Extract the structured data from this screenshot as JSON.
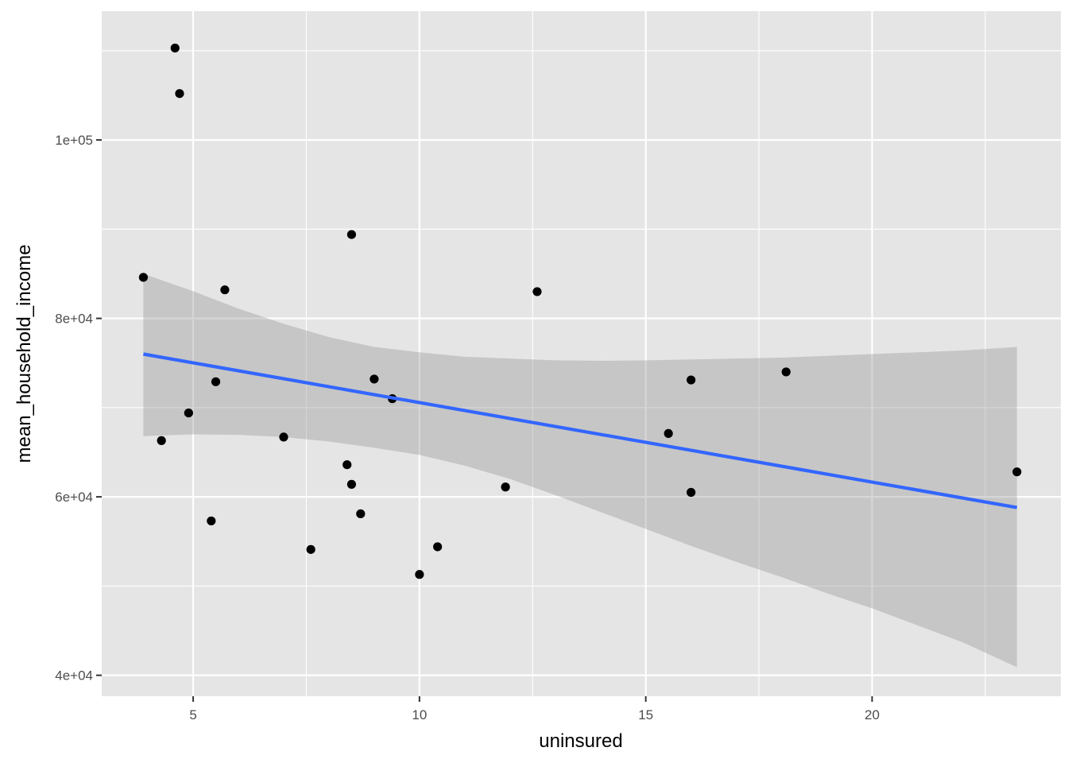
{
  "chart_data": {
    "type": "scatter",
    "title": "",
    "xlabel": "uninsured",
    "ylabel": "mean_household_income",
    "xlim": [
      2.98,
      24.17
    ],
    "ylim": [
      37650,
      114440
    ],
    "x_ticks": [
      5,
      10,
      15,
      20
    ],
    "x_tick_labels": [
      "5",
      "10",
      "15",
      "20"
    ],
    "x_minor_ticks": [
      7.5,
      12.5,
      17.5,
      22.5
    ],
    "y_ticks": [
      40000,
      60000,
      80000,
      100000
    ],
    "y_tick_labels": [
      "4e+04",
      "6e+04",
      "8e+04",
      "1e+05"
    ],
    "y_minor_ticks": [
      50000,
      70000,
      90000,
      110000
    ],
    "grid": true,
    "colors": {
      "panel": "#e5e5e5",
      "grid": "#ffffff",
      "points": "#000000",
      "fit_line": "#3366ff",
      "ribbon": "#999999"
    },
    "points": [
      {
        "x": 4.6,
        "y": 110300
      },
      {
        "x": 4.7,
        "y": 105200
      },
      {
        "x": 3.9,
        "y": 84600
      },
      {
        "x": 4.3,
        "y": 66300
      },
      {
        "x": 4.9,
        "y": 69400
      },
      {
        "x": 5.4,
        "y": 57300
      },
      {
        "x": 5.5,
        "y": 72900
      },
      {
        "x": 5.7,
        "y": 83200
      },
      {
        "x": 7.0,
        "y": 66700
      },
      {
        "x": 7.6,
        "y": 54100
      },
      {
        "x": 8.4,
        "y": 63600
      },
      {
        "x": 8.5,
        "y": 89400
      },
      {
        "x": 8.5,
        "y": 61400
      },
      {
        "x": 8.7,
        "y": 58100
      },
      {
        "x": 9.0,
        "y": 73200
      },
      {
        "x": 9.4,
        "y": 71000
      },
      {
        "x": 10.0,
        "y": 51300
      },
      {
        "x": 10.4,
        "y": 54400
      },
      {
        "x": 11.9,
        "y": 61100
      },
      {
        "x": 12.6,
        "y": 83000
      },
      {
        "x": 15.5,
        "y": 67100
      },
      {
        "x": 16.0,
        "y": 73100
      },
      {
        "x": 16.0,
        "y": 60500
      },
      {
        "x": 18.1,
        "y": 74000
      },
      {
        "x": 23.2,
        "y": 62800
      }
    ],
    "fit_line": {
      "x": [
        3.9,
        23.2
      ],
      "y": [
        76000,
        58800
      ]
    },
    "confidence_band": {
      "x": [
        3.9,
        5.0,
        6.0,
        7.0,
        8.0,
        9.0,
        10.0,
        11.0,
        12.0,
        13.0,
        14.0,
        15.0,
        16.0,
        17.0,
        18.0,
        19.0,
        20.0,
        21.0,
        22.0,
        23.2
      ],
      "upper": [
        85000,
        83050,
        81100,
        79400,
        77900,
        76800,
        76200,
        75700,
        75500,
        75300,
        75250,
        75300,
        75400,
        75500,
        75600,
        75800,
        76000,
        76200,
        76400,
        76800
      ],
      "lower": [
        66800,
        67000,
        66950,
        66700,
        66200,
        65500,
        64700,
        63500,
        62000,
        60200,
        58300,
        56400,
        54500,
        52700,
        51000,
        49200,
        47500,
        45600,
        43700,
        40900
      ]
    }
  }
}
